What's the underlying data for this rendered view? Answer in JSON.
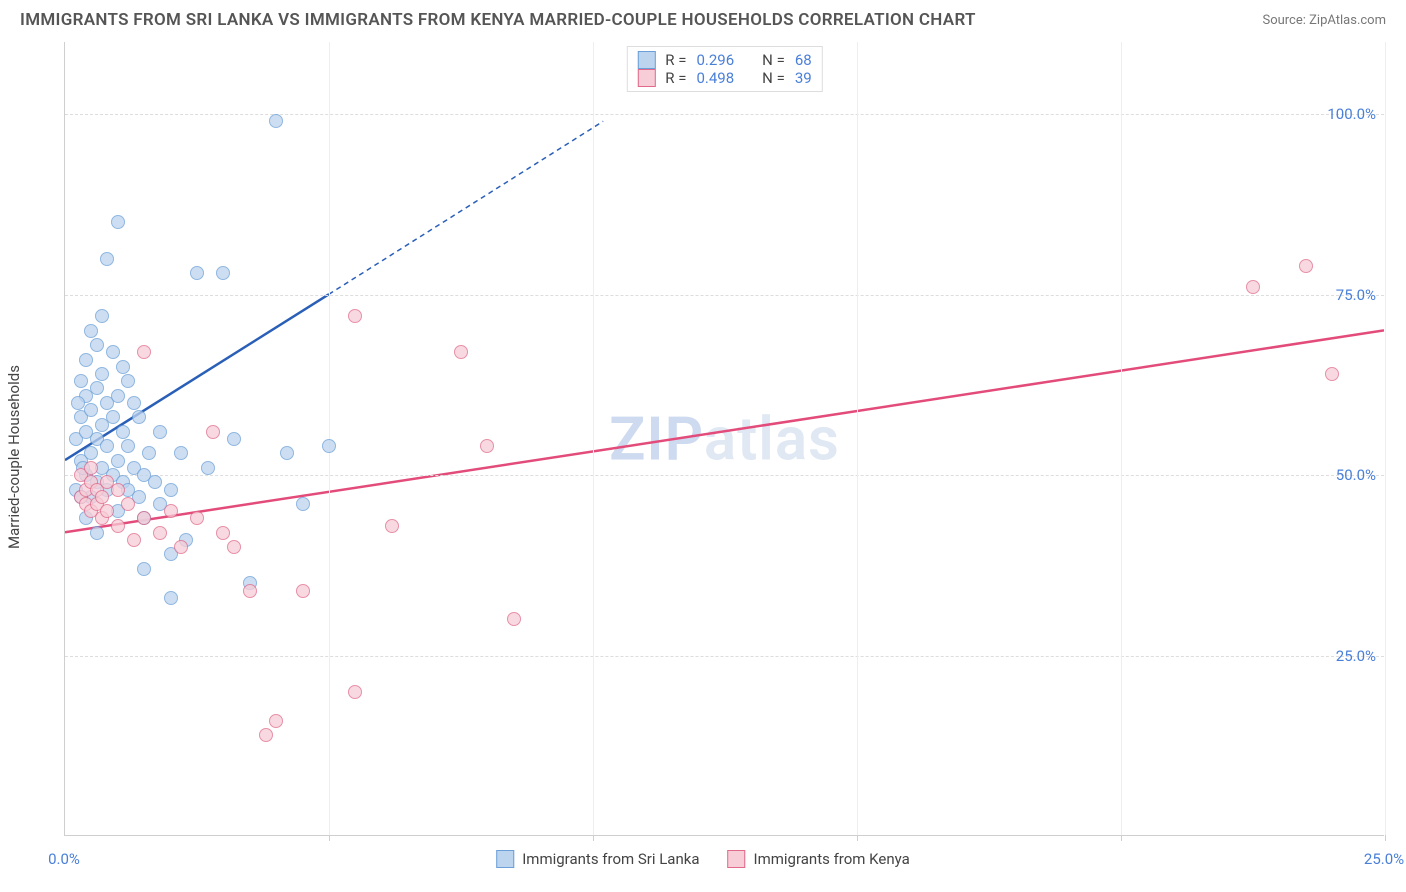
{
  "title": "IMMIGRANTS FROM SRI LANKA VS IMMIGRANTS FROM KENYA MARRIED-COUPLE HOUSEHOLDS CORRELATION CHART",
  "source": "Source: ZipAtlas.com",
  "ylabel": "Married-couple Households",
  "watermark_1": "ZIP",
  "watermark_2": "atlas",
  "chart": {
    "type": "scatter",
    "xlim": [
      0,
      25
    ],
    "ylim": [
      0,
      110
    ],
    "x_ticks": [
      0,
      25
    ],
    "x_tick_labels": [
      "0.0%",
      "25.0%"
    ],
    "x_minor_ticks": [
      5,
      10,
      15,
      20,
      25
    ],
    "y_gridlines": [
      25,
      50,
      75,
      100
    ],
    "y_tick_labels": [
      "25.0%",
      "50.0%",
      "75.0%",
      "100.0%"
    ],
    "background_color": "#ffffff",
    "grid_color": "#dddddd",
    "axis_color": "#cfcfcf",
    "tick_label_color": "#4a7fd8",
    "title_color": "#555555",
    "title_fontsize": 17,
    "label_fontsize": 15,
    "point_radius": 7,
    "series": [
      {
        "name": "Immigrants from Sri Lanka",
        "fill": "#bdd4ee",
        "stroke": "#6a9fd8",
        "line_color": "#2a5fb8",
        "R": "0.296",
        "N": "68",
        "trend": {
          "x1": 0,
          "y1": 52,
          "x2_solid": 5,
          "y2_solid": 75,
          "x2_dash": 10.2,
          "y2_dash": 99
        },
        "points": [
          [
            0.2,
            48
          ],
          [
            0.2,
            55
          ],
          [
            0.3,
            52
          ],
          [
            0.3,
            58
          ],
          [
            0.3,
            63
          ],
          [
            0.4,
            50
          ],
          [
            0.4,
            56
          ],
          [
            0.4,
            61
          ],
          [
            0.4,
            66
          ],
          [
            0.5,
            47
          ],
          [
            0.5,
            53
          ],
          [
            0.5,
            59
          ],
          [
            0.5,
            70
          ],
          [
            0.6,
            49
          ],
          [
            0.6,
            55
          ],
          [
            0.6,
            62
          ],
          [
            0.6,
            68
          ],
          [
            0.7,
            51
          ],
          [
            0.7,
            57
          ],
          [
            0.7,
            64
          ],
          [
            0.7,
            72
          ],
          [
            0.8,
            48
          ],
          [
            0.8,
            54
          ],
          [
            0.8,
            60
          ],
          [
            0.8,
            80
          ],
          [
            0.9,
            50
          ],
          [
            0.9,
            58
          ],
          [
            0.9,
            67
          ],
          [
            1.0,
            45
          ],
          [
            1.0,
            52
          ],
          [
            1.0,
            61
          ],
          [
            1.0,
            85
          ],
          [
            1.1,
            49
          ],
          [
            1.1,
            56
          ],
          [
            1.1,
            65
          ],
          [
            1.2,
            48
          ],
          [
            1.2,
            54
          ],
          [
            1.2,
            63
          ],
          [
            1.3,
            51
          ],
          [
            1.3,
            60
          ],
          [
            1.4,
            47
          ],
          [
            1.4,
            58
          ],
          [
            1.5,
            50
          ],
          [
            1.5,
            44
          ],
          [
            1.6,
            53
          ],
          [
            1.7,
            49
          ],
          [
            1.8,
            46
          ],
          [
            1.8,
            56
          ],
          [
            2.0,
            48
          ],
          [
            2.0,
            39
          ],
          [
            2.2,
            53
          ],
          [
            2.3,
            41
          ],
          [
            2.5,
            78
          ],
          [
            2.7,
            51
          ],
          [
            3.0,
            78
          ],
          [
            3.2,
            55
          ],
          [
            3.5,
            35
          ],
          [
            4.0,
            99
          ],
          [
            4.2,
            53
          ],
          [
            4.5,
            46
          ],
          [
            2.0,
            33
          ],
          [
            1.5,
            37
          ],
          [
            0.6,
            42
          ],
          [
            0.4,
            44
          ],
          [
            5.0,
            54
          ],
          [
            0.3,
            47
          ],
          [
            0.35,
            51
          ],
          [
            0.25,
            60
          ]
        ]
      },
      {
        "name": "Immigrants from Kenya",
        "fill": "#f7cdd7",
        "stroke": "#e06a8a",
        "line_color": "#e34b7a",
        "R": "0.498",
        "N": "39",
        "trend": {
          "x1": 0,
          "y1": 42,
          "x2_solid": 25,
          "y2_solid": 70,
          "x2_dash": 25,
          "y2_dash": 70
        },
        "points": [
          [
            0.3,
            47
          ],
          [
            0.3,
            50
          ],
          [
            0.4,
            46
          ],
          [
            0.4,
            48
          ],
          [
            0.5,
            45
          ],
          [
            0.5,
            49
          ],
          [
            0.5,
            51
          ],
          [
            0.6,
            46
          ],
          [
            0.6,
            48
          ],
          [
            0.7,
            44
          ],
          [
            0.7,
            47
          ],
          [
            0.8,
            45
          ],
          [
            0.8,
            49
          ],
          [
            1.0,
            43
          ],
          [
            1.0,
            48
          ],
          [
            1.2,
            46
          ],
          [
            1.3,
            41
          ],
          [
            1.5,
            44
          ],
          [
            1.5,
            67
          ],
          [
            1.8,
            42
          ],
          [
            2.0,
            45
          ],
          [
            2.2,
            40
          ],
          [
            2.5,
            44
          ],
          [
            2.8,
            56
          ],
          [
            3.0,
            42
          ],
          [
            3.2,
            40
          ],
          [
            3.5,
            34
          ],
          [
            3.8,
            14
          ],
          [
            4.0,
            16
          ],
          [
            4.5,
            34
          ],
          [
            5.5,
            20
          ],
          [
            5.5,
            72
          ],
          [
            6.2,
            43
          ],
          [
            7.5,
            67
          ],
          [
            8.5,
            30
          ],
          [
            8.0,
            54
          ],
          [
            22.5,
            76
          ],
          [
            23.5,
            79
          ],
          [
            24.0,
            64
          ]
        ]
      }
    ]
  },
  "legend_top": {
    "r_label": "R =",
    "n_label": "N ="
  },
  "legend_bottom": {
    "items": [
      "Immigrants from Sri Lanka",
      "Immigrants from Kenya"
    ]
  }
}
